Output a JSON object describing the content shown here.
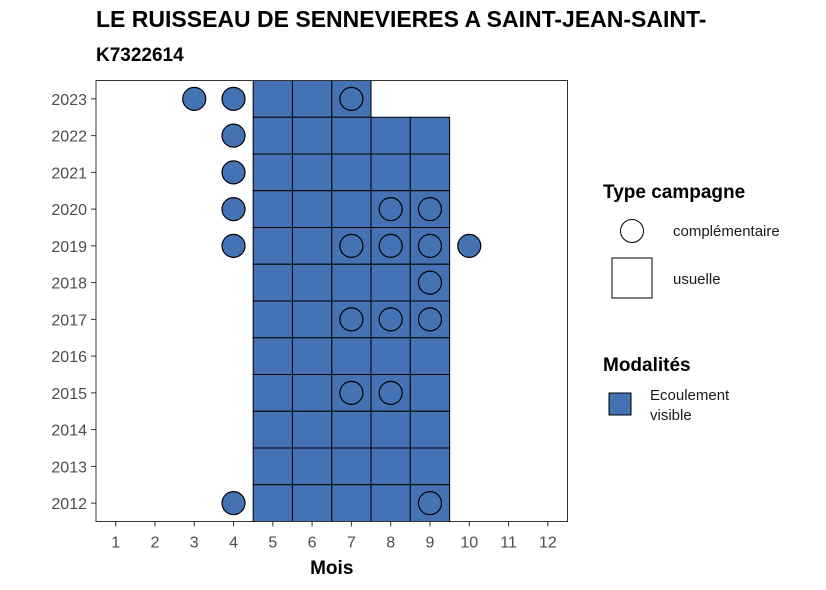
{
  "chart_data": {
    "type": "heatmap",
    "title": "LE RUISSEAU DE SENNEVIERES A SAINT-JEAN-SAINT-",
    "subtitle": "K7322614",
    "xlabel": "Mois",
    "ylabel": "",
    "x_ticks": [
      1,
      2,
      3,
      4,
      5,
      6,
      7,
      8,
      9,
      10,
      11,
      12
    ],
    "y_ticks": [
      2012,
      2013,
      2014,
      2015,
      2016,
      2017,
      2018,
      2019,
      2020,
      2021,
      2022,
      2023
    ],
    "xlim": [
      0.5,
      12.5
    ],
    "ylim": [
      2011.5,
      2023.5
    ],
    "fill_color": "#4472b4",
    "usuelle": [
      {
        "year": 2023,
        "months": [
          5,
          6,
          7
        ]
      },
      {
        "year": 2022,
        "months": [
          5,
          6,
          7,
          8,
          9
        ]
      },
      {
        "year": 2021,
        "months": [
          5,
          6,
          7,
          8,
          9
        ]
      },
      {
        "year": 2020,
        "months": [
          5,
          6,
          7,
          8,
          9
        ]
      },
      {
        "year": 2019,
        "months": [
          5,
          6,
          7,
          8,
          9
        ]
      },
      {
        "year": 2018,
        "months": [
          5,
          6,
          7,
          8,
          9
        ]
      },
      {
        "year": 2017,
        "months": [
          5,
          6,
          7,
          8,
          9
        ]
      },
      {
        "year": 2016,
        "months": [
          5,
          6,
          7,
          8,
          9
        ]
      },
      {
        "year": 2015,
        "months": [
          5,
          6,
          7,
          8,
          9
        ]
      },
      {
        "year": 2014,
        "months": [
          5,
          6,
          7,
          8,
          9
        ]
      },
      {
        "year": 2013,
        "months": [
          5,
          6,
          7,
          8,
          9
        ]
      },
      {
        "year": 2012,
        "months": [
          5,
          6,
          7,
          8,
          9
        ]
      }
    ],
    "complementaire": [
      {
        "year": 2023,
        "months": [
          3,
          4,
          7
        ]
      },
      {
        "year": 2022,
        "months": [
          4
        ]
      },
      {
        "year": 2021,
        "months": [
          4
        ]
      },
      {
        "year": 2020,
        "months": [
          4,
          8,
          9
        ]
      },
      {
        "year": 2019,
        "months": [
          4,
          7,
          8,
          9,
          10
        ]
      },
      {
        "year": 2018,
        "months": [
          9
        ]
      },
      {
        "year": 2017,
        "months": [
          7,
          8,
          9
        ]
      },
      {
        "year": 2015,
        "months": [
          7,
          8
        ]
      },
      {
        "year": 2012,
        "months": [
          4,
          9
        ]
      }
    ],
    "legend_shape": {
      "title": "Type campagne",
      "items": [
        "complémentaire",
        "usuelle"
      ]
    },
    "legend_fill": {
      "title": "Modalités",
      "items": [
        {
          "label_line1": "Ecoulement",
          "label_line2": "visible",
          "color": "#4472b4"
        }
      ]
    },
    "legend_position": "right",
    "grid": false
  }
}
